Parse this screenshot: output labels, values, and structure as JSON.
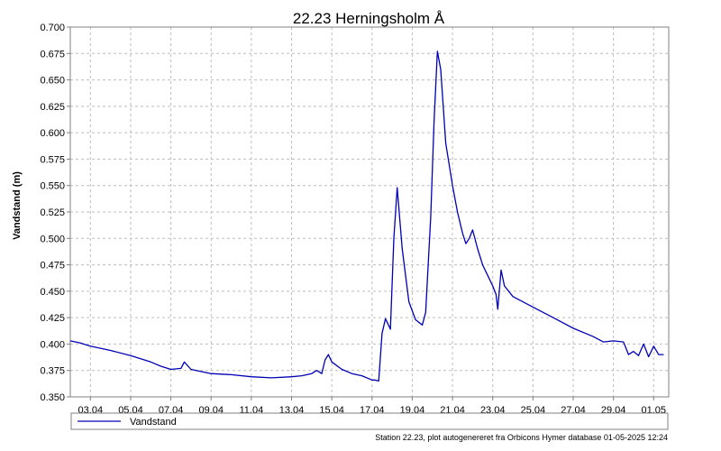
{
  "chart_data": {
    "type": "line",
    "title": "22.23 Herningsholm Å",
    "xlabel": "",
    "ylabel": "Vandstand (m)",
    "x_unit": "date (2025, dd.mm)",
    "xlim": [
      "2025-04-02",
      "2025-05-01T18:00"
    ],
    "ylim": [
      0.35,
      0.7
    ],
    "yticks": [
      0.35,
      0.375,
      0.4,
      0.425,
      0.45,
      0.475,
      0.5,
      0.525,
      0.55,
      0.575,
      0.6,
      0.625,
      0.65,
      0.675,
      0.7
    ],
    "ytick_labels": [
      "0.350",
      "0.375",
      "0.400",
      "0.425",
      "0.450",
      "0.475",
      "0.500",
      "0.525",
      "0.550",
      "0.575",
      "0.600",
      "0.625",
      "0.650",
      "0.675",
      "0.700"
    ],
    "xticks": [
      "2025-04-03",
      "2025-04-05",
      "2025-04-07",
      "2025-04-09",
      "2025-04-11",
      "2025-04-13",
      "2025-04-15",
      "2025-04-17",
      "2025-04-19",
      "2025-04-21",
      "2025-04-23",
      "2025-04-25",
      "2025-04-27",
      "2025-04-29",
      "2025-05-01"
    ],
    "xtick_labels": [
      "03.04",
      "05.04",
      "07.04",
      "09.04",
      "11.04",
      "13.04",
      "15.04",
      "17.04",
      "19.04",
      "21.04",
      "23.04",
      "25.04",
      "27.04",
      "29.04",
      "01.05"
    ],
    "grid": true,
    "legend_position": "bottom",
    "footer": "Station 22.23, plot autogenereret fra Orbicons Hymer database 01-05-2025 12:24",
    "colors": {
      "series": "#0000b4",
      "grid": "#bdbdbd",
      "frame": "#808080"
    },
    "series": [
      {
        "name": "Vandstand",
        "x": [
          "2025-04-02T00:00",
          "2025-04-02T12:00",
          "2025-04-03T00:00",
          "2025-04-04T00:00",
          "2025-04-05T00:00",
          "2025-04-06T00:00",
          "2025-04-06T12:00",
          "2025-04-07T00:00",
          "2025-04-07T12:00",
          "2025-04-07T16:00",
          "2025-04-08T00:00",
          "2025-04-09T00:00",
          "2025-04-10T00:00",
          "2025-04-11T00:00",
          "2025-04-12T00:00",
          "2025-04-13T00:00",
          "2025-04-13T12:00",
          "2025-04-14T00:00",
          "2025-04-14T06:00",
          "2025-04-14T12:00",
          "2025-04-14T16:00",
          "2025-04-14T20:00",
          "2025-04-15T00:00",
          "2025-04-15T12:00",
          "2025-04-16T00:00",
          "2025-04-16T12:00",
          "2025-04-17T00:00",
          "2025-04-17T03:00",
          "2025-04-17T08:00",
          "2025-04-17T12:00",
          "2025-04-17T16:00",
          "2025-04-17T22:00",
          "2025-04-18T02:00",
          "2025-04-18T06:00",
          "2025-04-18T12:00",
          "2025-04-18T20:00",
          "2025-04-19T04:00",
          "2025-04-19T12:00",
          "2025-04-19T16:00",
          "2025-04-19T22:00",
          "2025-04-20T02:00",
          "2025-04-20T06:00",
          "2025-04-20T10:00",
          "2025-04-20T16:00",
          "2025-04-21T00:00",
          "2025-04-21T06:00",
          "2025-04-21T12:00",
          "2025-04-21T16:00",
          "2025-04-21T20:00",
          "2025-04-22T00:00",
          "2025-04-22T06:00",
          "2025-04-22T12:00",
          "2025-04-22T18:00",
          "2025-04-23T00:00",
          "2025-04-23T04:00",
          "2025-04-23T06:00",
          "2025-04-23T10:00",
          "2025-04-23T14:00",
          "2025-04-24T00:00",
          "2025-04-25T00:00",
          "2025-04-26T00:00",
          "2025-04-27T00:00",
          "2025-04-28T00:00",
          "2025-04-28T12:00",
          "2025-04-29T00:00",
          "2025-04-29T12:00",
          "2025-04-29T18:00",
          "2025-04-30T00:00",
          "2025-04-30T06:00",
          "2025-04-30T12:00",
          "2025-04-30T18:00",
          "2025-05-01T00:00",
          "2025-05-01T06:00",
          "2025-05-01T12:00"
        ],
        "values": [
          0.403,
          0.401,
          0.398,
          0.394,
          0.389,
          0.383,
          0.379,
          0.376,
          0.377,
          0.383,
          0.376,
          0.372,
          0.371,
          0.369,
          0.368,
          0.369,
          0.37,
          0.372,
          0.375,
          0.372,
          0.385,
          0.39,
          0.383,
          0.376,
          0.372,
          0.37,
          0.366,
          0.366,
          0.365,
          0.41,
          0.424,
          0.414,
          0.5,
          0.548,
          0.49,
          0.44,
          0.423,
          0.418,
          0.43,
          0.52,
          0.61,
          0.677,
          0.66,
          0.59,
          0.55,
          0.525,
          0.505,
          0.495,
          0.5,
          0.508,
          0.49,
          0.475,
          0.465,
          0.455,
          0.447,
          0.433,
          0.47,
          0.455,
          0.445,
          0.435,
          0.425,
          0.415,
          0.407,
          0.402,
          0.403,
          0.402,
          0.39,
          0.393,
          0.389,
          0.4,
          0.388,
          0.398,
          0.39,
          0.39
        ]
      }
    ]
  }
}
